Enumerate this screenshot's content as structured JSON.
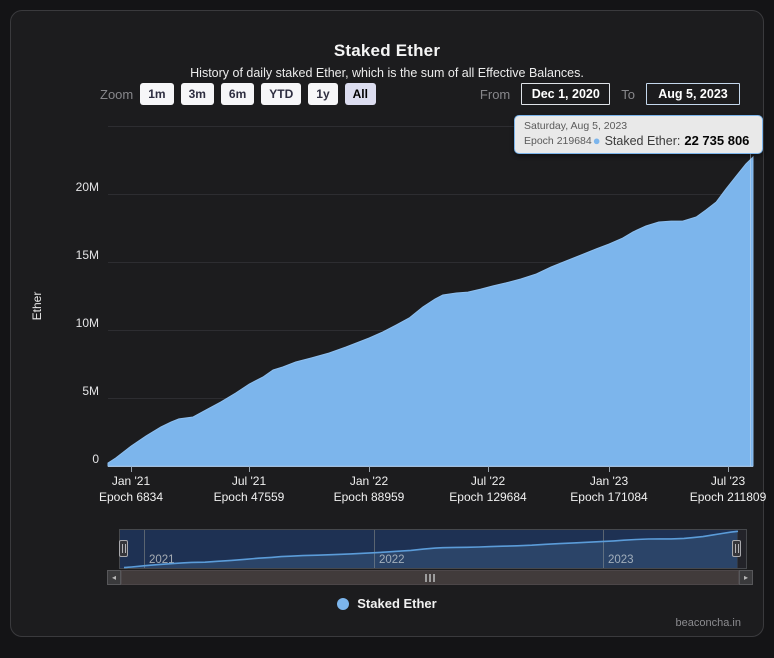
{
  "header": {
    "title": "Staked Ether",
    "subtitle": "History of daily staked Ether, which is the sum of all Effective Balances."
  },
  "controls": {
    "zoom_label": "Zoom",
    "zoom_buttons": [
      {
        "label": "1m",
        "selected": false
      },
      {
        "label": "3m",
        "selected": false
      },
      {
        "label": "6m",
        "selected": false
      },
      {
        "label": "YTD",
        "selected": false
      },
      {
        "label": "1y",
        "selected": false
      },
      {
        "label": "All",
        "selected": true
      }
    ],
    "from_label": "From",
    "from_value": "Dec 1, 2020",
    "to_label": "To",
    "to_value": "Aug 5, 2023"
  },
  "tooltip": {
    "date": "Saturday, Aug 5, 2023",
    "epoch": "Epoch 219684",
    "dot": "●",
    "series_label": "Staked Ether:",
    "value": "22 735 806"
  },
  "legend": {
    "label": "Staked Ether",
    "color": "#7cb5ec"
  },
  "watermark": "beaconcha.in",
  "icons": {
    "scroll_left": "◂",
    "scroll_right": "▸"
  },
  "colors": {
    "accent_blue": "#7cb5ec",
    "area_fill": "#7cb5ec",
    "nav_selected_bg": "#1e3153",
    "tooltip_bg": "#e9e9e9",
    "card_bg": "#1c1c1e"
  },
  "chart_data": {
    "type": "area",
    "title": "Staked Ether",
    "subtitle": "History of daily staked Ether, which is the sum of all Effective Balances.",
    "xlabel": "",
    "ylabel": "Ether",
    "x_range": [
      "2020-12-01",
      "2023-08-05"
    ],
    "ylim": [
      0,
      25000000
    ],
    "grid": true,
    "legend_position": "bottom-center",
    "ytick_labels_top_to_bottom": [
      "20M",
      "15M",
      "10M",
      "5M",
      "0"
    ],
    "xticks": [
      {
        "line1": "Jan '21",
        "line2": "Epoch 6834"
      },
      {
        "line1": "Jul '21",
        "line2": "Epoch 47559"
      },
      {
        "line1": "Jan '22",
        "line2": "Epoch 88959"
      },
      {
        "line1": "Jul '22",
        "line2": "Epoch 129684"
      },
      {
        "line1": "Jan '23",
        "line2": "Epoch 171084"
      },
      {
        "line1": "Jul '23",
        "line2": "Epoch 211809"
      }
    ],
    "series": [
      {
        "name": "Staked Ether",
        "color": "#7cb5ec",
        "x_fraction_of_range": [
          0,
          0.012,
          0.036,
          0.059,
          0.082,
          0.098,
          0.11,
          0.132,
          0.152,
          0.175,
          0.198,
          0.219,
          0.24,
          0.256,
          0.271,
          0.291,
          0.315,
          0.343,
          0.369,
          0.389,
          0.405,
          0.426,
          0.447,
          0.467,
          0.488,
          0.507,
          0.519,
          0.54,
          0.558,
          0.578,
          0.597,
          0.617,
          0.64,
          0.664,
          0.687,
          0.71,
          0.733,
          0.757,
          0.777,
          0.798,
          0.814,
          0.834,
          0.854,
          0.873,
          0.891,
          0.912,
          0.927,
          0.943,
          0.958,
          0.974,
          0.989,
          1.0
        ],
        "values_millions": [
          0.22,
          0.59,
          1.47,
          2.21,
          2.87,
          3.24,
          3.46,
          3.6,
          4.12,
          4.71,
          5.37,
          6.03,
          6.54,
          7.06,
          7.28,
          7.65,
          7.94,
          8.31,
          8.75,
          9.12,
          9.41,
          9.85,
          10.37,
          10.88,
          11.69,
          12.28,
          12.57,
          12.72,
          12.79,
          13.01,
          13.24,
          13.46,
          13.75,
          14.12,
          14.63,
          15.07,
          15.51,
          15.96,
          16.32,
          16.76,
          17.21,
          17.65,
          17.94,
          18.01,
          18.01,
          18.31,
          18.82,
          19.41,
          20.37,
          21.32,
          22.21,
          22.72
        ]
      }
    ],
    "hover_point": {
      "date": "Saturday, Aug 5, 2023",
      "epoch": 219684,
      "value": 22735806
    },
    "navigator": {
      "year_labels": [
        "2021",
        "2022",
        "2023"
      ]
    }
  }
}
